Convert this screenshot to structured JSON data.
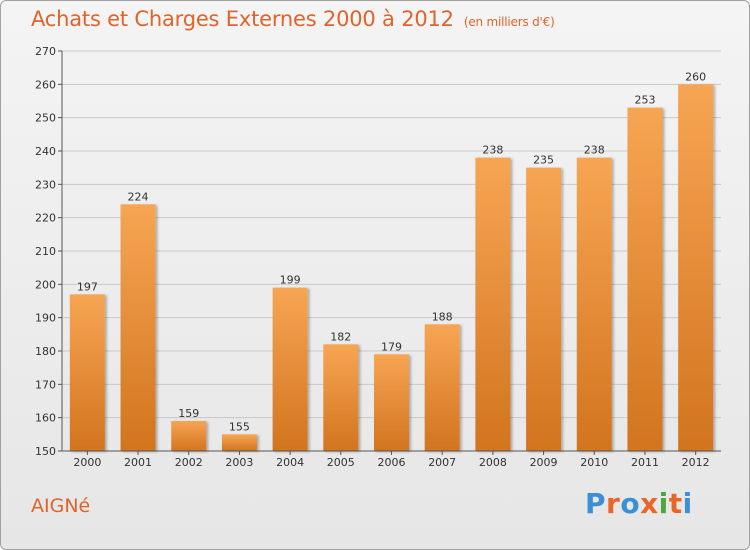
{
  "title": "Achats et Charges Externes 2000 à 2012",
  "subtitle": "(en milliers d'€)",
  "commune": "AIGNé",
  "logo": {
    "text": "Proxiti",
    "colors": [
      "#3a8fd6",
      "#e8662a",
      "#3a8fd6",
      "#e8662a",
      "#4aa83e",
      "#e8662a",
      "#3a8fd6"
    ]
  },
  "colors": {
    "accent": "#e0642a",
    "bar_light": "#f7a553",
    "bar_dark": "#d2741e",
    "grid": "#c8c8c8"
  },
  "chart_data": {
    "type": "bar",
    "categories": [
      "2000",
      "2001",
      "2002",
      "2003",
      "2004",
      "2005",
      "2006",
      "2007",
      "2008",
      "2009",
      "2010",
      "2011",
      "2012"
    ],
    "values": [
      197,
      224,
      159,
      155,
      199,
      182,
      179,
      188,
      238,
      235,
      238,
      253,
      260
    ],
    "ylim": [
      150,
      270
    ],
    "yticks": [
      150,
      160,
      170,
      180,
      190,
      200,
      210,
      220,
      230,
      240,
      250,
      260,
      270
    ],
    "grid": true
  }
}
